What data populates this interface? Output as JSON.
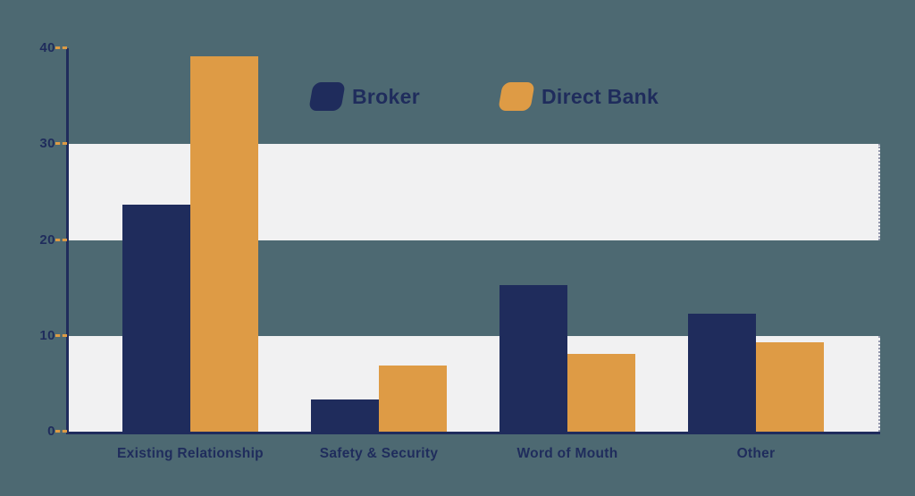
{
  "background_color": "#4D6972",
  "chart_data": {
    "type": "bar",
    "title": "",
    "xlabel": "",
    "ylabel": "",
    "categories": [
      "Existing Relationship",
      "Safety & Security",
      "Word of Mouth",
      "Other"
    ],
    "series": [
      {
        "name": "Broker",
        "color": "#1F2C5C",
        "values": [
          23.7,
          3.4,
          15.3,
          12.3
        ]
      },
      {
        "name": "Direct Bank",
        "color": "#DE9B45",
        "values": [
          39.2,
          6.9,
          8.1,
          9.3
        ]
      }
    ],
    "ylim": [
      0,
      40
    ],
    "y_ticks": [
      0,
      10,
      20,
      30,
      40
    ],
    "grid": "alternating horizontal bands",
    "band_ranges": [
      [
        0,
        10
      ],
      [
        20,
        30
      ]
    ],
    "band_color": "#F1F1F2",
    "axis_color": "#1F2C5C",
    "tick_dash_color": "#DE9B45",
    "label_color": "#1F2C5C",
    "legend_position": "top-center"
  }
}
